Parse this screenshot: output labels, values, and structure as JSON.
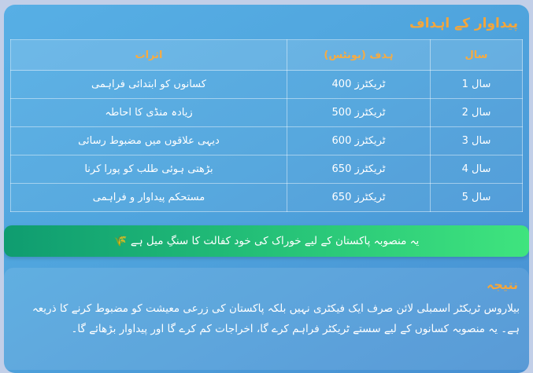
{
  "page": {
    "title": "پیداوار کے اہداف"
  },
  "table": {
    "columns": [
      "سال",
      "ہدف (یونٹس)",
      "اثرات"
    ],
    "rows": [
      {
        "year": "سال 1",
        "target": "400 ٹریکٹرز",
        "impact": "کسانوں کو ابتدائی فراہمی"
      },
      {
        "year": "سال 2",
        "target": "500 ٹریکٹرز",
        "impact": "زیادہ منڈی کا احاطہ"
      },
      {
        "year": "سال 3",
        "target": "600 ٹریکٹرز",
        "impact": "دیہی علاقوں میں مضبوط رسائی"
      },
      {
        "year": "سال 4",
        "target": "650 ٹریکٹرز",
        "impact": "بڑھتی ہوئی طلب کو پورا کرنا"
      },
      {
        "year": "سال 5",
        "target": "650 ٹریکٹرز",
        "impact": "مستحکم پیداوار و فراہمی"
      }
    ]
  },
  "banner": {
    "text": "یہ منصوبہ پاکستان کے لیے خوراک کی خود کفالت کا سنگِ میل ہے 🌾",
    "icon": "wheat-emoji"
  },
  "conclusion": {
    "title": "نتیجہ",
    "body": "بیلاروس ٹریکٹر اسمبلی لائن صرف ایک فیکٹری نہیں بلکہ پاکستان کی زرعی معیشت کو مضبوط کرنے کا ذریعہ ہے۔ یہ منصوبہ کسانوں کے لیے سستے ٹریکٹر فراہم کرے گا، اخراجات کم کرے گا اور پیداوار بڑھائے گا۔"
  },
  "colors": {
    "page_background": "#c2cfe8",
    "card_blue": "#4fa7dd",
    "accent_orange": "#f4a63b",
    "banner_green_start": "#0f9c70",
    "banner_green_end": "#3fe47e",
    "text_white": "#ffffff"
  }
}
